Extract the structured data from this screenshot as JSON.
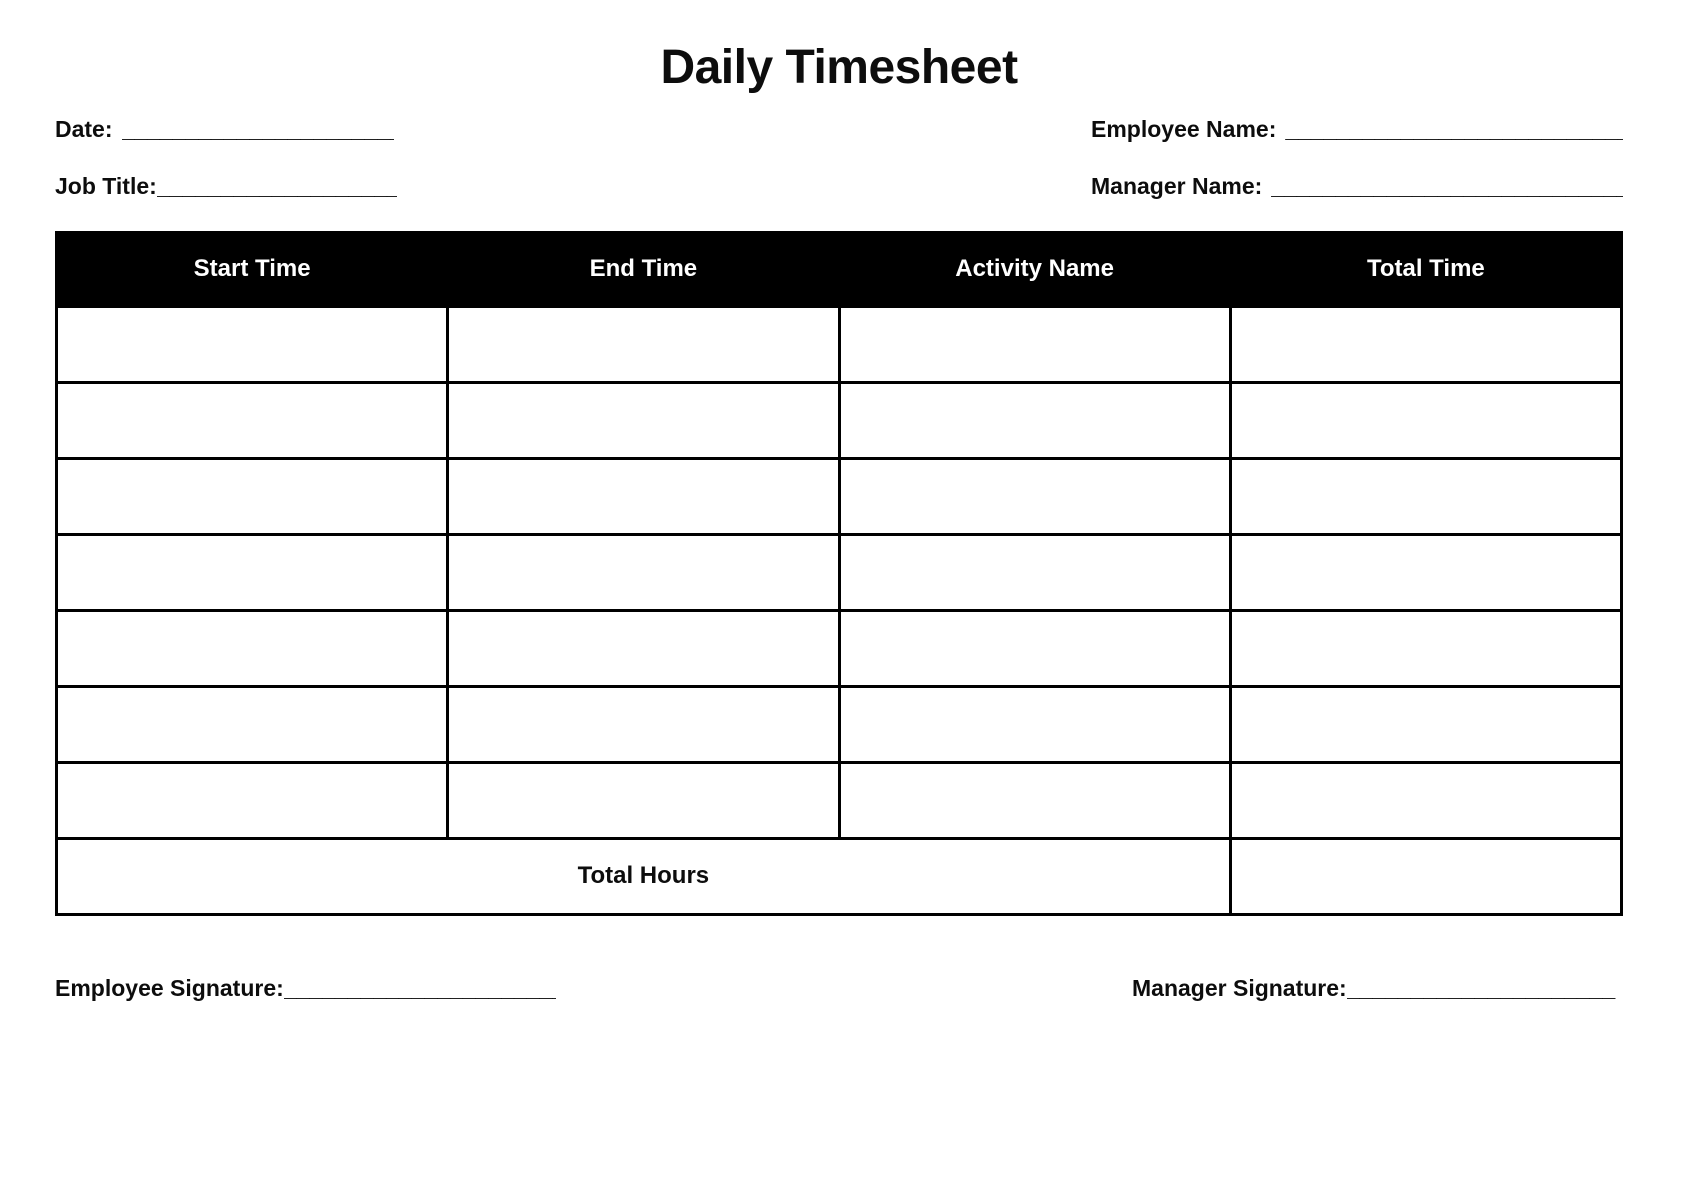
{
  "page": {
    "title": "Daily Timesheet"
  },
  "fields": {
    "date": {
      "label": "Date:",
      "line": "______________________"
    },
    "employee_name": {
      "label": "Employee Name:",
      "line": "____________________________"
    },
    "job_title": {
      "label": "Job Title:",
      "line": "___________________"
    },
    "manager_name": {
      "label": "Manager Name:",
      "line": "_____________________________"
    }
  },
  "table": {
    "headers": [
      "Start Time",
      "End Time",
      "Activity Name",
      "Total Time"
    ],
    "empty_row_count": 7,
    "total_row": {
      "label": "Total Hours",
      "value": ""
    }
  },
  "signatures": {
    "employee": {
      "label": "Employee Signature:",
      "line": "______________________"
    },
    "manager": {
      "label": "Manager Signature:",
      "line": "_____________________"
    }
  },
  "colors": {
    "header_bg": "#000000",
    "header_text": "#ffffff",
    "text": "#0d0d0d",
    "line_color": "#000000"
  }
}
